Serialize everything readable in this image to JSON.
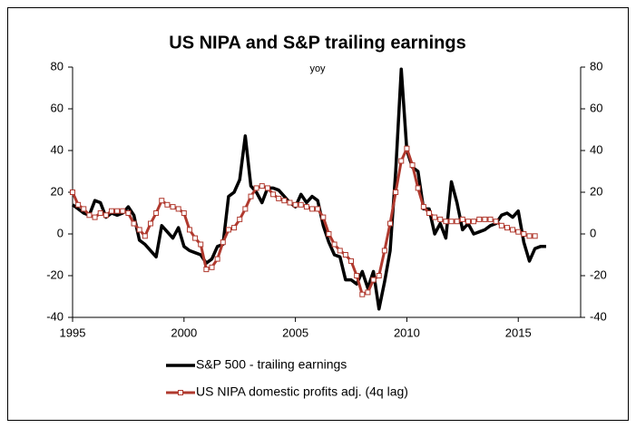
{
  "chart_data": {
    "type": "line",
    "title": "US NIPA and S&P trailing earnings",
    "subtitle": "yoy",
    "x": [
      1995,
      1995.25,
      1995.5,
      1995.75,
      1996,
      1996.25,
      1996.5,
      1996.75,
      1997,
      1997.25,
      1997.5,
      1997.75,
      1998,
      1998.25,
      1998.5,
      1998.75,
      1999,
      1999.25,
      1999.5,
      1999.75,
      2000,
      2000.25,
      2000.5,
      2000.75,
      2001,
      2001.25,
      2001.5,
      2001.75,
      2002,
      2002.25,
      2002.5,
      2002.75,
      2003,
      2003.25,
      2003.5,
      2003.75,
      2004,
      2004.25,
      2004.5,
      2004.75,
      2005,
      2005.25,
      2005.5,
      2005.75,
      2006,
      2006.25,
      2006.5,
      2006.75,
      2007,
      2007.25,
      2007.5,
      2007.75,
      2008,
      2008.25,
      2008.5,
      2008.75,
      2009,
      2009.25,
      2009.5,
      2009.75,
      2010,
      2010.25,
      2010.5,
      2010.75,
      2011,
      2011.25,
      2011.5,
      2011.75,
      2012,
      2012.25,
      2012.5,
      2012.75,
      2013,
      2013.25,
      2013.5,
      2013.75,
      2014,
      2014.25,
      2014.5,
      2014.75,
      2015,
      2015.25,
      2015.5,
      2015.75,
      2016,
      2016.25
    ],
    "series": [
      {
        "name": "S&P 500 - trailing earnings",
        "color": "#000000",
        "values": [
          14,
          12,
          10,
          9,
          16,
          15,
          8,
          10,
          9,
          10,
          13,
          9,
          -3,
          -5,
          -8,
          -11,
          4,
          1,
          -2,
          3,
          -6,
          -8,
          -9,
          -10,
          -14,
          -12,
          -6,
          -5,
          18,
          20,
          26,
          47,
          23,
          20,
          15,
          22,
          22,
          21,
          18,
          15,
          13,
          19,
          15,
          18,
          16,
          4,
          -4,
          -10,
          -11,
          -22,
          -22,
          -24,
          -18,
          -26,
          -18,
          -36,
          -23,
          -8,
          30,
          79,
          40,
          32,
          30,
          12,
          12,
          0,
          5,
          -2,
          25,
          15,
          2,
          5,
          0,
          1,
          2,
          4,
          5,
          9,
          10,
          8,
          11,
          -4,
          -13,
          -7,
          -6,
          -6
        ]
      },
      {
        "name": "US NIPA domestic profits adj. (4q lag)",
        "color": "#b0392e",
        "values": [
          20,
          14,
          12,
          9,
          8,
          10,
          9,
          11,
          11,
          11,
          10,
          5,
          2,
          -1,
          5,
          10,
          16,
          14,
          13,
          12,
          10,
          2,
          -2,
          -5,
          -17,
          -16,
          -12,
          -4,
          2,
          3,
          7,
          12,
          18,
          22,
          23,
          22,
          19,
          17,
          16,
          15,
          14,
          14,
          13,
          12,
          12,
          8,
          0,
          -5,
          -8,
          -10,
          -13,
          -20,
          -29,
          -28,
          -22,
          -20,
          -8,
          5,
          20,
          35,
          41,
          33,
          22,
          13,
          10,
          8,
          7,
          6,
          6,
          6,
          7,
          6,
          6,
          7,
          7,
          7,
          6,
          4,
          3,
          2,
          1,
          0,
          -1,
          -1,
          null,
          null
        ]
      }
    ],
    "xlim": [
      1995,
      2017.8
    ],
    "xticks": [
      1995,
      2000,
      2005,
      2010,
      2015
    ],
    "ylim": [
      -40,
      80
    ],
    "yticks": [
      -40,
      -20,
      0,
      20,
      40,
      60,
      80
    ],
    "y2lim": [
      -40,
      80
    ],
    "y2ticks": [
      -40,
      -20,
      0,
      20,
      40,
      60,
      80
    ],
    "grid": false
  }
}
